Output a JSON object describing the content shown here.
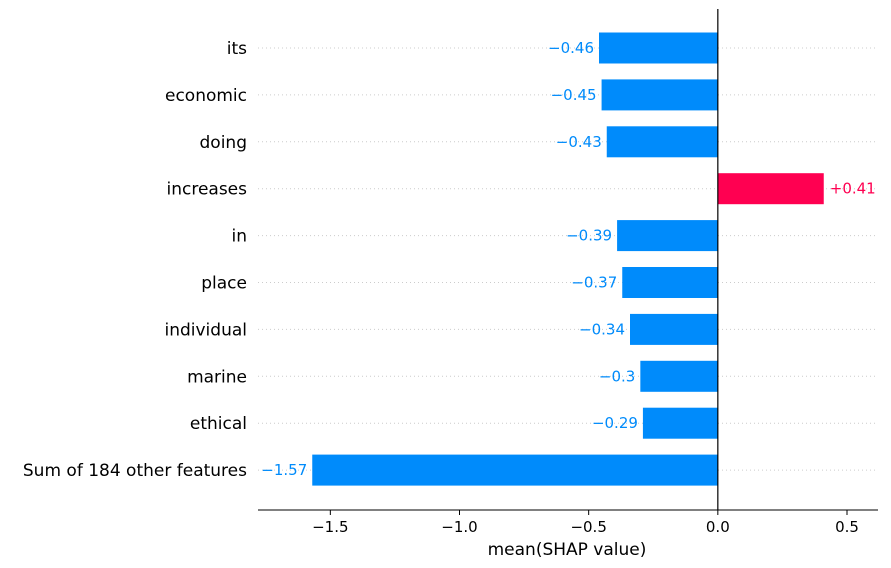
{
  "chart_data": {
    "type": "bar",
    "orientation": "horizontal",
    "categories": [
      "its",
      "economic",
      "doing",
      "increases",
      "in",
      "place",
      "individual",
      "marine",
      "ethical",
      "Sum of 184 other features"
    ],
    "values": [
      -0.46,
      -0.45,
      -0.43,
      0.41,
      -0.39,
      -0.37,
      -0.34,
      -0.3,
      -0.29,
      -1.57
    ],
    "value_labels": [
      "−0.46",
      "−0.45",
      "−0.43",
      "+0.41",
      "−0.39",
      "−0.37",
      "−0.34",
      "−0.3",
      "−0.29",
      "−1.57"
    ],
    "xlabel": "mean(SHAP value)",
    "xlim": [
      -1.78,
      0.62
    ],
    "xticks": [
      -1.5,
      -1.0,
      -0.5,
      0.0,
      0.5
    ],
    "xtick_labels": [
      "−1.5",
      "−1.0",
      "−0.5",
      "0.0",
      "0.5"
    ],
    "grid": "dotted horizontal guide lines per row",
    "colors": {
      "positive": "#ff0051",
      "negative": "#008bfb"
    }
  }
}
